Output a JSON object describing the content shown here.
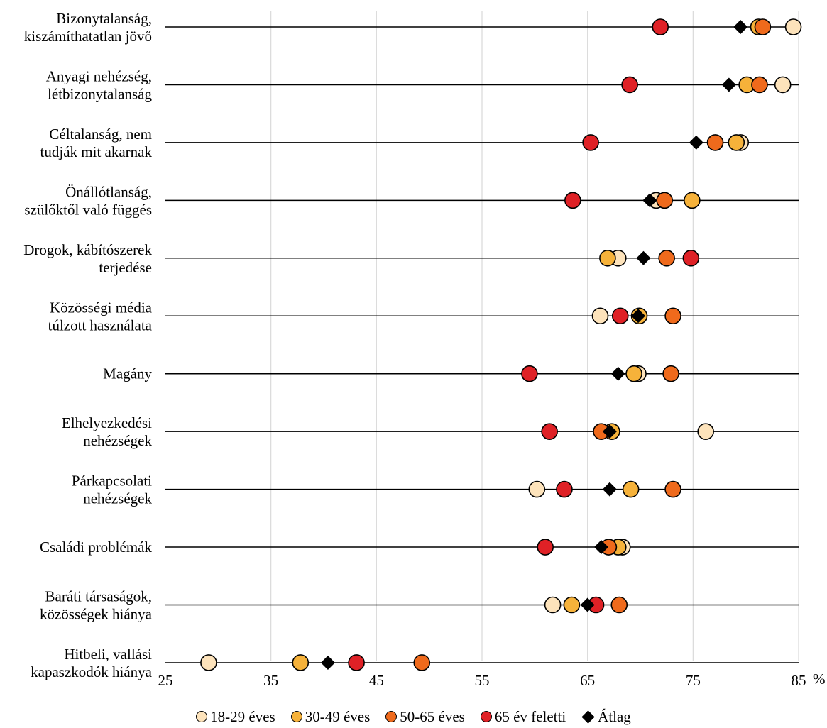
{
  "chart_data": {
    "type": "scatter",
    "orientation": "horizontal-dot-plot",
    "x_unit": "%",
    "xlim": [
      25,
      85
    ],
    "x_ticks": [
      "25",
      "35",
      "45",
      "55",
      "65",
      "75",
      "85"
    ],
    "vertical_grid": true,
    "legend_position": "bottom",
    "categories": [
      [
        "Bizonytalanság,",
        "kiszámíthatatlan jövő"
      ],
      [
        "Anyagi nehézség,",
        "létbizonytalanság"
      ],
      [
        "Céltalanság, nem",
        "tudják mit akarnak"
      ],
      [
        "Önállótlanság,",
        "szülőktől való függés"
      ],
      [
        "Drogok, kábítószerek",
        "terjedése"
      ],
      [
        "Közösségi média",
        "túlzott használata"
      ],
      [
        "Magány"
      ],
      [
        "Elhelyezkedési",
        "nehézségek"
      ],
      [
        "Párkapcsolati",
        "nehézségek"
      ],
      [
        "Családi problémák"
      ],
      [
        "Baráti társaságok,",
        "közösségek hiánya"
      ],
      [
        "Hitbeli, vallási",
        "kapaszkodók hiánya"
      ]
    ],
    "series": [
      {
        "name": "18-29 éves",
        "marker": "circle",
        "color": "#fde3bb",
        "values": [
          84.5,
          83.5,
          79.5,
          71.5,
          67.9,
          66.2,
          69.8,
          76.2,
          60.2,
          68.3,
          61.7,
          29.1
        ]
      },
      {
        "name": "30-49 éves",
        "marker": "circle",
        "color": "#f6b23a",
        "values": [
          81.2,
          80.1,
          79.1,
          74.9,
          66.9,
          69.9,
          69.4,
          67.3,
          69.1,
          67.9,
          63.5,
          37.8
        ]
      },
      {
        "name": "50-65 éves",
        "marker": "circle",
        "color": "#ef6a1c",
        "values": [
          81.6,
          81.3,
          77.1,
          72.3,
          72.5,
          73.1,
          72.9,
          66.3,
          73.1,
          67.0,
          68.0,
          49.3
        ]
      },
      {
        "name": "65 év feletti",
        "marker": "circle",
        "color": "#df2126",
        "values": [
          71.9,
          69.0,
          65.3,
          63.6,
          74.8,
          68.1,
          59.5,
          61.4,
          62.8,
          61.0,
          65.8,
          43.1
        ]
      },
      {
        "name": "Átlag",
        "marker": "diamond",
        "color": "#000000",
        "values": [
          79.5,
          78.4,
          75.3,
          70.9,
          70.3,
          69.8,
          67.9,
          67.1,
          67.1,
          66.3,
          65.0,
          40.4
        ]
      }
    ]
  }
}
